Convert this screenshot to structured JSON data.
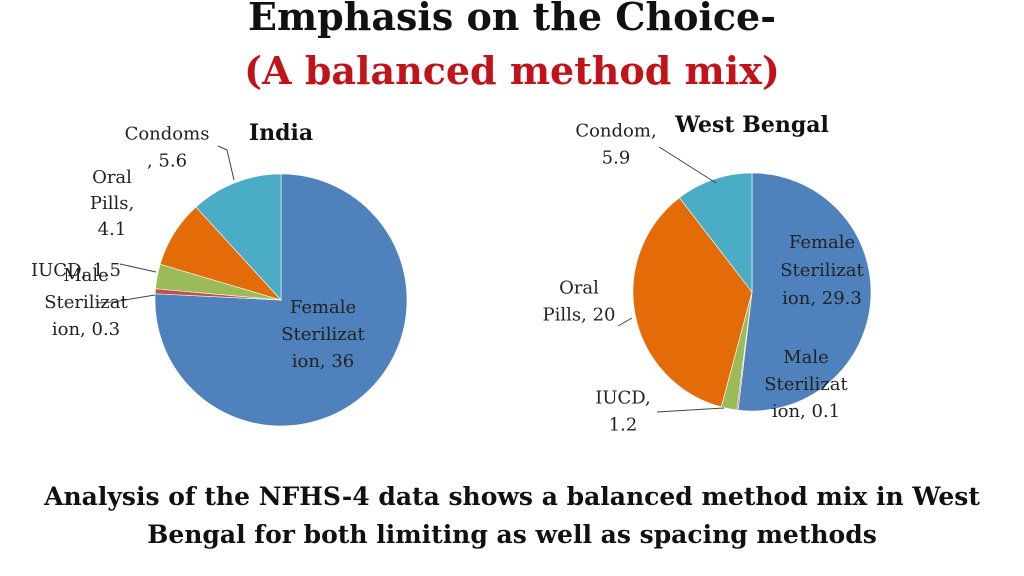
{
  "slide": {
    "title_line1": "Emphasis on the Choice-",
    "title_line2": "(A balanced method mix)",
    "footer_line1": "Analysis of the NFHS-4 data shows a balanced method mix in West",
    "footer_line2": "Bengal for both limiting as well as spacing methods"
  },
  "chart_data": [
    {
      "type": "pie",
      "title": "India",
      "categories": [
        "Female Sterilization",
        "Male Sterilization",
        "IUCD",
        "Oral Pills",
        "Condoms"
      ],
      "values": [
        36,
        0.3,
        1.5,
        4.1,
        5.6
      ],
      "labels": [
        [
          "Female",
          "Sterilizat",
          "ion, 36"
        ],
        [
          "Male",
          "Sterilizat",
          "ion, 0.3"
        ],
        [
          "IUCD, 1.5"
        ],
        [
          "Oral",
          "Pills,",
          "4.1"
        ],
        [
          "Condoms",
          ", 5.6"
        ]
      ],
      "colors": [
        "#4f81bd",
        "#c0504d",
        "#9bbb59",
        "#e36c09",
        "#4bacc6"
      ]
    },
    {
      "type": "pie",
      "title": "West Bengal",
      "categories": [
        "Female Sterilization",
        "Male Sterilization",
        "IUCD",
        "Oral Pills",
        "Condom"
      ],
      "values": [
        29.3,
        0.1,
        1.2,
        20,
        5.9
      ],
      "labels": [
        [
          "Female",
          "Sterilizat",
          "ion, 29.3"
        ],
        [
          "Male",
          "Sterilizat",
          "ion, 0.1"
        ],
        [
          "IUCD,",
          "1.2"
        ],
        [
          "Oral",
          "Pills, 20"
        ],
        [
          "Condom,",
          "5.9"
        ]
      ],
      "colors": [
        "#4f81bd",
        "#c0504d",
        "#9bbb59",
        "#e36c09",
        "#4bacc6"
      ]
    }
  ]
}
